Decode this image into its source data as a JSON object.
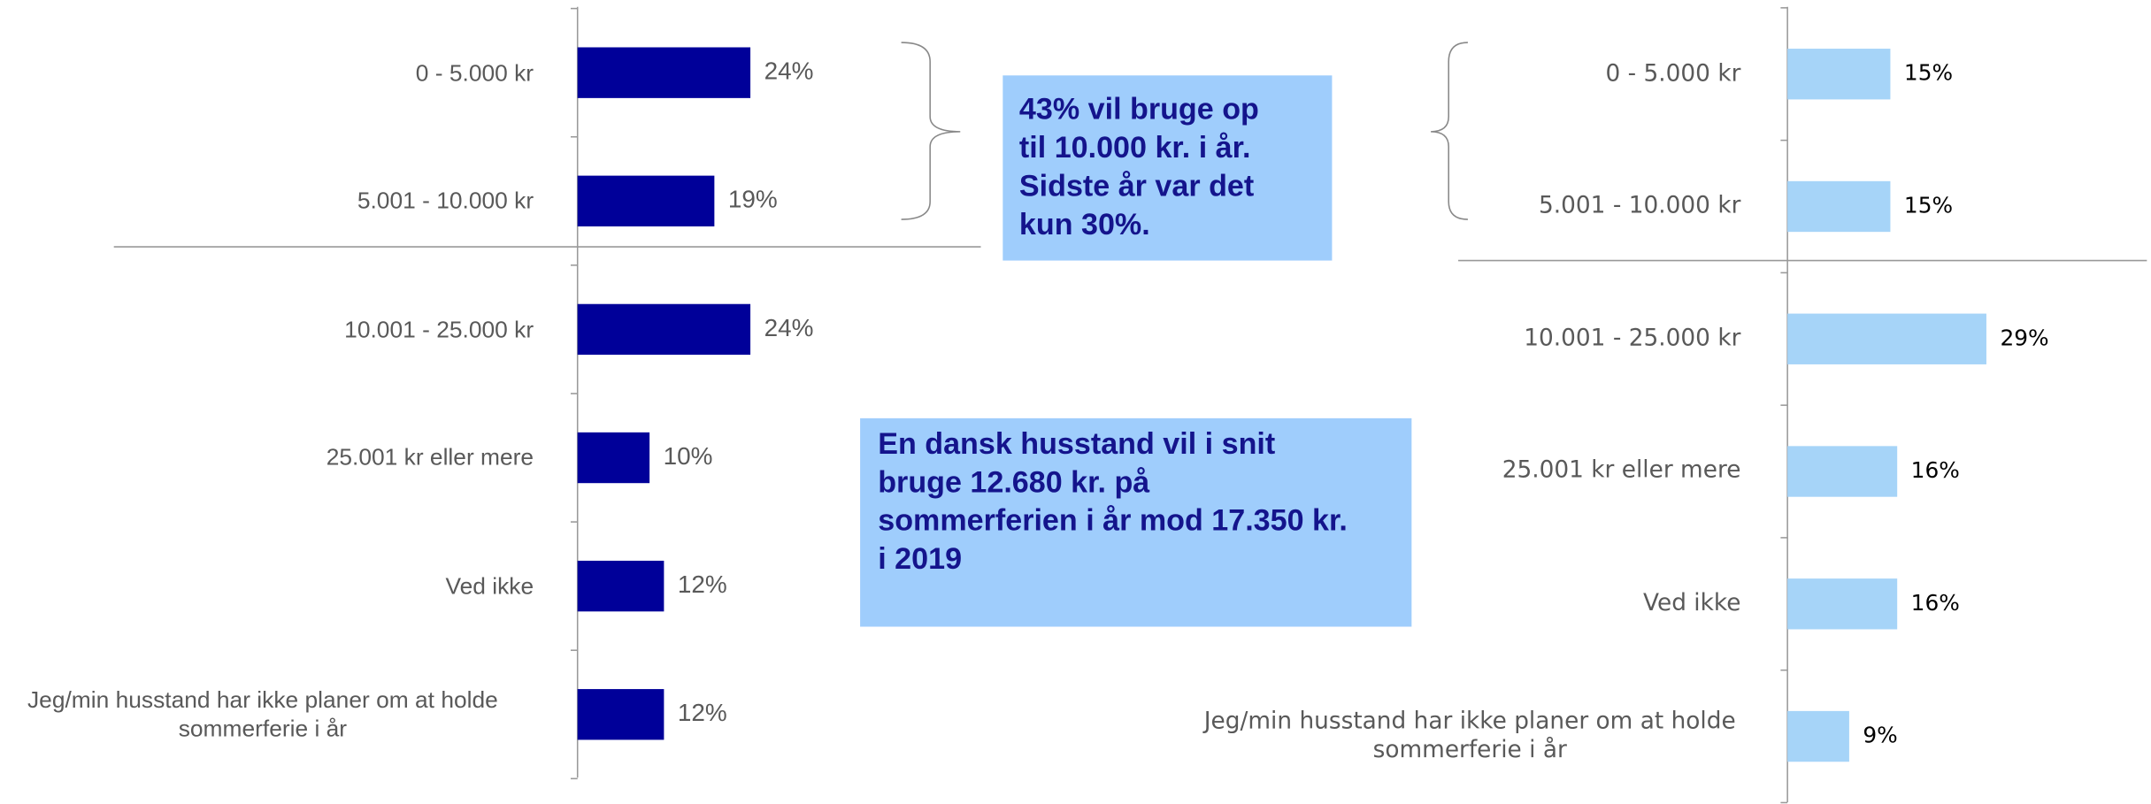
{
  "chart_data": [
    {
      "type": "bar",
      "orientation": "horizontal",
      "categories": [
        "0 - 5.000 kr",
        "5.001 - 10.000 kr",
        "10.001 - 25.000 kr",
        "25.001 kr eller mere",
        "Ved ikke",
        "Jeg/min husstand har ikke planer om at holde sommerferie i år"
      ],
      "values": [
        24,
        19,
        24,
        10,
        12,
        12
      ],
      "value_labels": [
        "24%",
        "19%",
        "24%",
        "10%",
        "12%",
        "12%"
      ],
      "color": "#000099",
      "xlim": [
        0,
        100
      ]
    },
    {
      "type": "bar",
      "orientation": "horizontal",
      "categories": [
        "0 - 5.000 kr",
        "5.001 - 10.000 kr",
        "10.001 - 25.000 kr",
        "25.001 kr eller mere",
        "Ved ikke",
        "Jeg/min husstand har ikke planer om at holde sommerferie i år"
      ],
      "values": [
        15,
        15,
        29,
        16,
        16,
        9
      ],
      "value_labels": [
        "15%",
        "15%",
        "29%",
        "16%",
        "16%",
        "9%"
      ],
      "color": "#a6d4f8",
      "xlim": [
        0,
        100
      ]
    }
  ],
  "annotations": [
    {
      "lines": [
        "43% vil bruge op",
        "til 10.000 kr. i år.",
        "Sidste år var det",
        "kun 30%."
      ]
    },
    {
      "lines": [
        "En dansk husstand vil i snit",
        "bruge 12.680 kr. på",
        "sommerferien i år mod 17.350 kr.",
        "i 2019"
      ]
    }
  ]
}
